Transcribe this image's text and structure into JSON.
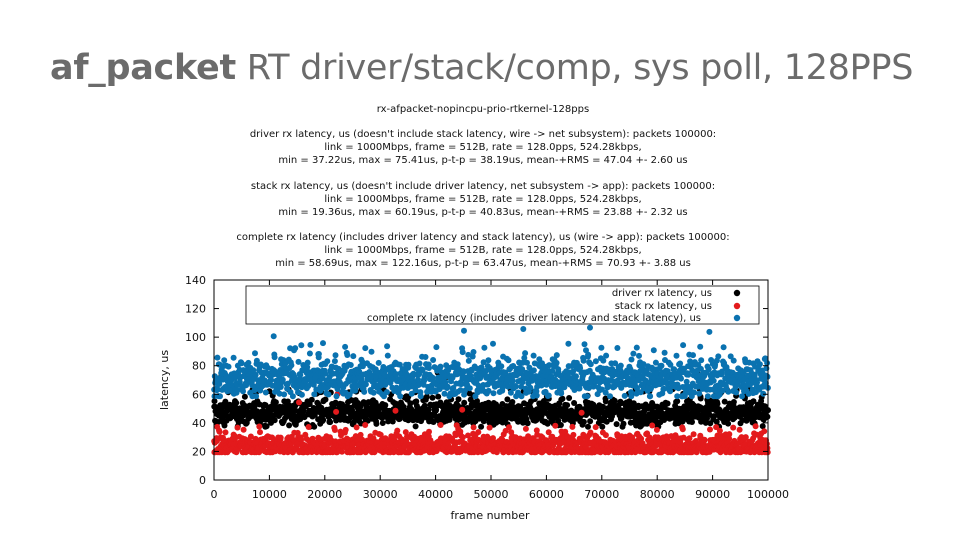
{
  "slide": {
    "title_bold": "af_packet",
    "title_rest": " RT driver/stack/comp, sys poll, 128PPS"
  },
  "chart_data": {
    "type": "scatter",
    "title": "rx-afpacket-nopincpu-prio-rtkernel-128pps",
    "subtitles": [
      [
        "driver rx latency, us (doesn't include stack latency, wire -> net subsystem): packets 100000:",
        "link = 1000Mbps, frame = 512B, rate = 128.0pps, 524.28kbps,",
        "min = 37.22us, max = 75.41us, p-t-p = 38.19us, mean-+RMS = 47.04 +- 2.60 us"
      ],
      [
        "stack rx latency, us (doesn't include driver latency, net subsystem -> app): packets 100000:",
        "link = 1000Mbps, frame = 512B, rate = 128.0pps, 524.28kbps,",
        "min = 19.36us, max = 60.19us, p-t-p = 40.83us, mean-+RMS = 23.88 +- 2.32 us"
      ],
      [
        "complete rx latency (includes driver latency and stack latency), us (wire -> app): packets 100000:",
        "link = 1000Mbps, frame = 512B, rate = 128.0pps, 524.28kbps,",
        "min = 58.69us, max = 122.16us, p-t-p = 63.47us, mean-+RMS = 70.93 +- 3.88 us"
      ]
    ],
    "xlabel": "frame number",
    "ylabel": "latency, us",
    "xlim": [
      0,
      100000
    ],
    "ylim": [
      0,
      140
    ],
    "xticks": [
      0,
      10000,
      20000,
      30000,
      40000,
      50000,
      60000,
      70000,
      80000,
      90000,
      100000
    ],
    "xtick_labels": [
      "0",
      "10000",
      "20000",
      "30000",
      "40000",
      "50000",
      "60000",
      "70000",
      "80000",
      "90000",
      "100000"
    ],
    "yticks": [
      0,
      20,
      40,
      60,
      80,
      100,
      120,
      140
    ],
    "grid": false,
    "legend_position": "top",
    "series": [
      {
        "name": "driver rx latency, us",
        "color": "#000000",
        "packets": 100000,
        "min": 37.22,
        "max": 75.41,
        "mean": 47.04,
        "rms": 2.6
      },
      {
        "name": "stack rx latency, us",
        "color": "#e31a1c",
        "packets": 100000,
        "min": 19.36,
        "max": 60.19,
        "mean": 23.88,
        "rms": 2.32
      },
      {
        "name": "complete rx latency (includes driver latency and stack latency), us",
        "color": "#0a72b0",
        "packets": 100000,
        "min": 58.69,
        "max": 122.16,
        "mean": 70.93,
        "rms": 3.88
      }
    ]
  }
}
